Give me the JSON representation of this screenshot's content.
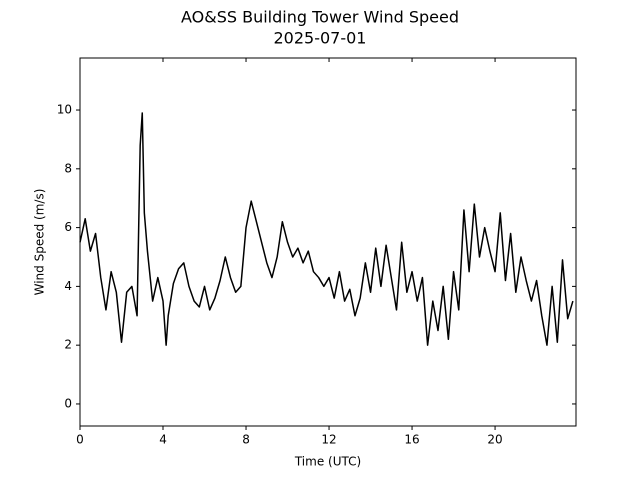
{
  "chart_data": {
    "type": "line",
    "title": "AO&SS Building Tower Wind Speed",
    "subtitle": "2025-07-01",
    "x_label": "Time (UTC)",
    "y_label": "Wind Speed (m/s)",
    "xlim": [
      0,
      23.9
    ],
    "ylim": [
      -0.75,
      11.77
    ],
    "xticks": [
      0,
      4,
      8,
      12,
      16,
      20
    ],
    "yticks": [
      0,
      2,
      4,
      6,
      8,
      10
    ],
    "series": [
      {
        "name": "Wind Speed",
        "color": "#000000",
        "x": [
          0,
          0.25,
          0.5,
          0.75,
          1.0,
          1.25,
          1.5,
          1.75,
          2.0,
          2.25,
          2.5,
          2.75,
          2.9,
          3.0,
          3.1,
          3.25,
          3.5,
          3.75,
          4.0,
          4.15,
          4.25,
          4.5,
          4.75,
          5.0,
          5.25,
          5.5,
          5.75,
          6.0,
          6.25,
          6.5,
          6.75,
          7.0,
          7.25,
          7.5,
          7.75,
          8.0,
          8.25,
          8.5,
          8.75,
          9.0,
          9.25,
          9.5,
          9.75,
          10.0,
          10.25,
          10.5,
          10.75,
          11.0,
          11.25,
          11.5,
          11.75,
          12.0,
          12.25,
          12.5,
          12.75,
          13.0,
          13.25,
          13.5,
          13.75,
          14.0,
          14.25,
          14.5,
          14.75,
          15.0,
          15.25,
          15.5,
          15.75,
          16.0,
          16.25,
          16.5,
          16.75,
          17.0,
          17.25,
          17.5,
          17.75,
          18.0,
          18.25,
          18.5,
          18.75,
          19.0,
          19.25,
          19.5,
          19.75,
          20.0,
          20.25,
          20.5,
          20.75,
          21.0,
          21.25,
          21.5,
          21.75,
          22.0,
          22.25,
          22.5,
          22.75,
          23.0,
          23.25,
          23.5,
          23.75
        ],
        "values": [
          5.5,
          6.3,
          5.2,
          5.8,
          4.3,
          3.2,
          4.5,
          3.8,
          2.1,
          3.8,
          4.0,
          3.0,
          8.8,
          9.9,
          6.5,
          5.2,
          3.5,
          4.3,
          3.5,
          2.0,
          3.0,
          4.1,
          4.6,
          4.8,
          4.0,
          3.5,
          3.3,
          4.0,
          3.2,
          3.6,
          4.2,
          5.0,
          4.3,
          3.8,
          4.0,
          6.0,
          6.9,
          6.2,
          5.5,
          4.8,
          4.3,
          5.0,
          6.2,
          5.5,
          5.0,
          5.3,
          4.8,
          5.2,
          4.5,
          4.3,
          4.0,
          4.3,
          3.6,
          4.5,
          3.5,
          3.9,
          3.0,
          3.6,
          4.8,
          3.8,
          5.3,
          4.0,
          5.4,
          4.3,
          3.2,
          5.5,
          3.8,
          4.5,
          3.5,
          4.3,
          2.0,
          3.5,
          2.5,
          4.0,
          2.2,
          4.5,
          3.2,
          6.6,
          4.5,
          6.8,
          5.0,
          6.0,
          5.2,
          4.5,
          6.5,
          4.2,
          5.8,
          3.8,
          5.0,
          4.2,
          3.5,
          4.2,
          3.0,
          2.0,
          4.0,
          2.1,
          4.9,
          2.9,
          3.5
        ]
      }
    ]
  }
}
